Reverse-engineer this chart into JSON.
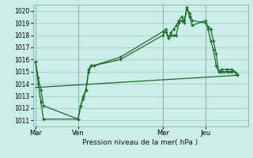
{
  "title": "Pression niveau de la mer( hPa )",
  "bg_color": "#cceee8",
  "grid_color": "#aad4ce",
  "line_color": "#1a6b2a",
  "ylim": [
    1010.5,
    1020.5
  ],
  "yticks": [
    1011,
    1012,
    1013,
    1014,
    1015,
    1016,
    1017,
    1018,
    1019,
    1020
  ],
  "xtick_labels": [
    "Mar",
    "Ven",
    "Mer",
    "Jeu"
  ],
  "xtick_positions": [
    0,
    8,
    24,
    32
  ],
  "vline_positions": [
    0,
    8,
    24,
    32
  ],
  "xlim": [
    -0.5,
    40
  ],
  "series1": {
    "x": [
      0,
      0.5,
      1,
      1.5,
      8,
      8.5,
      9,
      9.5,
      10,
      10.5,
      11,
      16,
      24,
      24.5,
      25,
      25.5,
      26,
      26.5,
      27,
      27.5,
      28,
      28.5,
      29,
      29.5,
      32,
      32.5,
      33,
      33.5,
      34,
      34.5,
      35,
      35.5,
      36,
      36.5,
      37,
      37.5,
      38
    ],
    "y": [
      1015.8,
      1014.5,
      1013.5,
      1012.2,
      1011.1,
      1012.2,
      1013.0,
      1013.5,
      1015.0,
      1015.5,
      1015.5,
      1016.0,
      1018.0,
      1018.3,
      1017.8,
      1018.0,
      1018.0,
      1018.0,
      1019.0,
      1019.2,
      1019.0,
      1020.2,
      1019.8,
      1019.2,
      1019.0,
      1018.7,
      1018.5,
      1017.5,
      1016.5,
      1015.0,
      1015.0,
      1015.0,
      1015.0,
      1015.0,
      1015.0,
      1015.0,
      1014.7
    ]
  },
  "series2": {
    "x": [
      0,
      0.5,
      1,
      1.5,
      8,
      8.5,
      9,
      9.5,
      10,
      10.5,
      11,
      16,
      24,
      24.5,
      25,
      25.5,
      26,
      26.5,
      27,
      27.5,
      28,
      28.5,
      29,
      29.5,
      32,
      32.5,
      33,
      33.5,
      34,
      34.5,
      35,
      36,
      37,
      38
    ],
    "y": [
      1015.8,
      1014.0,
      1012.5,
      1011.1,
      1011.1,
      1012.2,
      1012.8,
      1013.5,
      1015.2,
      1015.5,
      1015.5,
      1016.2,
      1018.3,
      1018.5,
      1017.8,
      1018.2,
      1018.5,
      1018.8,
      1019.2,
      1019.5,
      1019.2,
      1020.3,
      1019.5,
      1018.8,
      1019.2,
      1018.5,
      1017.5,
      1016.8,
      1015.5,
      1015.0,
      1015.2,
      1015.2,
      1015.2,
      1014.8
    ]
  },
  "series3": {
    "x": [
      0,
      38
    ],
    "y": [
      1013.7,
      1014.7
    ]
  }
}
